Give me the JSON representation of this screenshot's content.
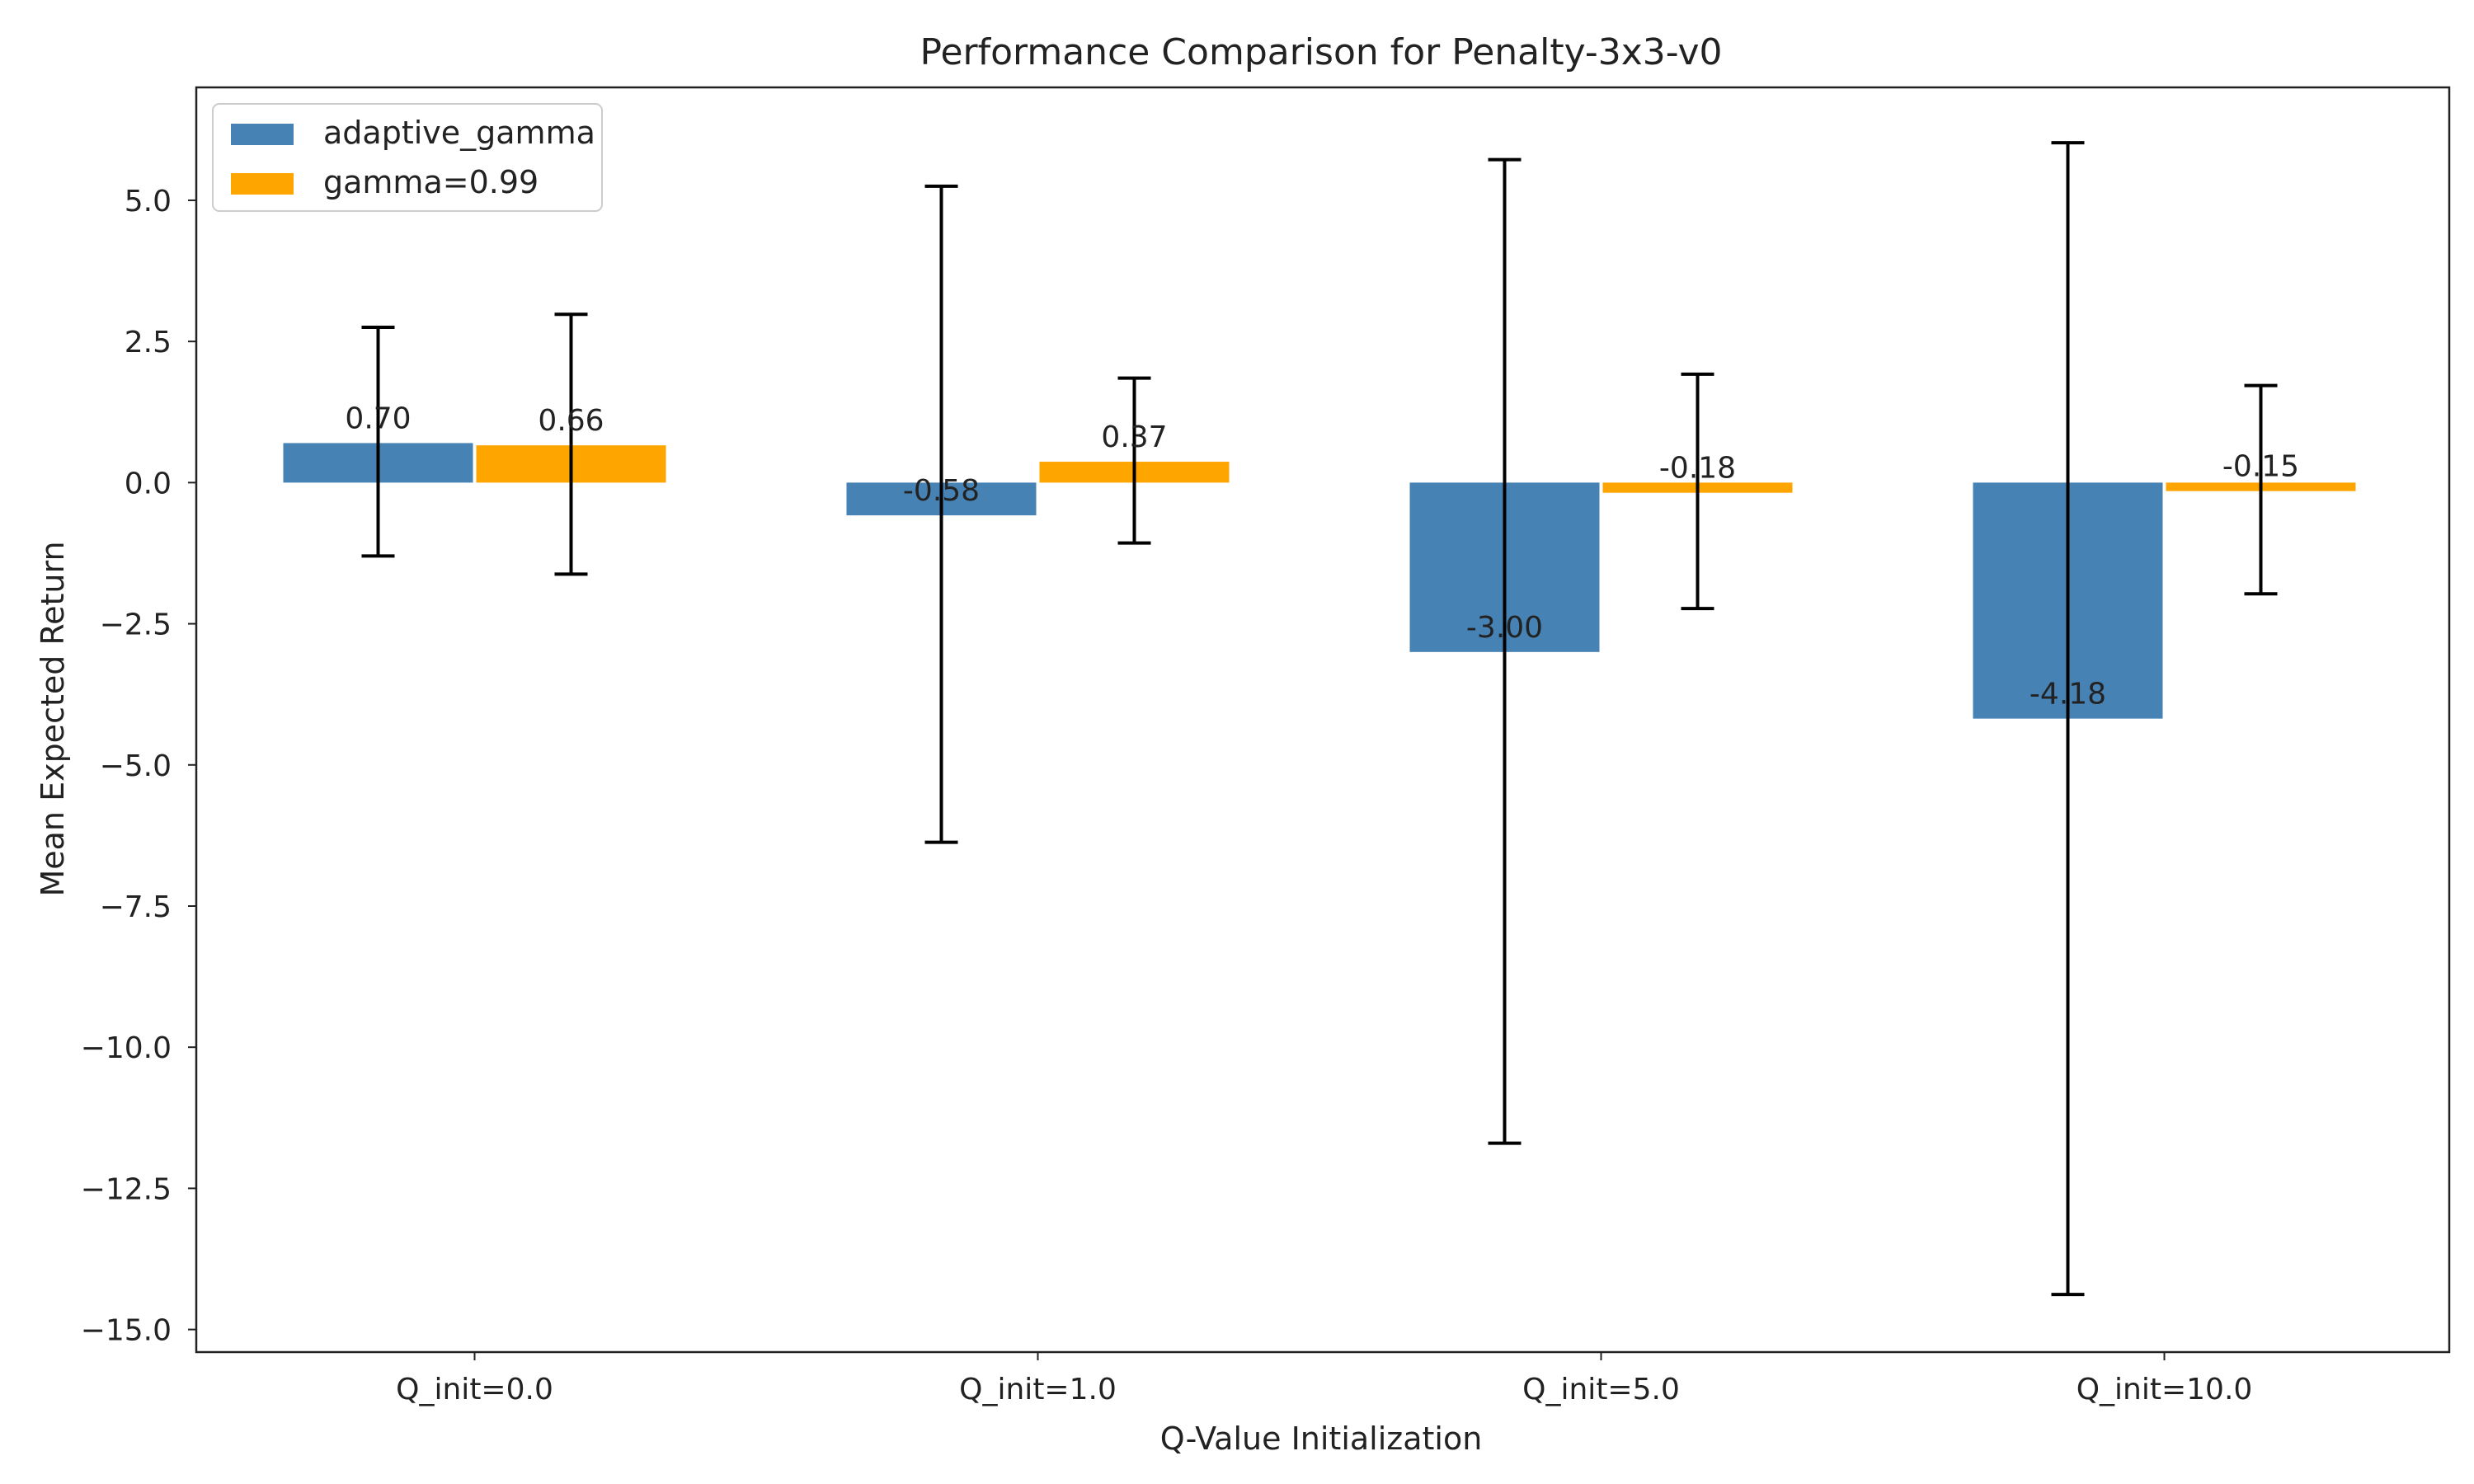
{
  "chart_data": {
    "type": "bar",
    "title": "Performance Comparison for Penalty-3x3-v0",
    "xlabel": "Q-Value Initialization",
    "ylabel": "Mean Expected Return",
    "categories": [
      "Q_init=0.0",
      "Q_init=1.0",
      "Q_init=5.0",
      "Q_init=10.0"
    ],
    "series": [
      {
        "name": "adaptive_gamma",
        "color": "#4682b4",
        "values": [
          0.7,
          -0.58,
          -3.0,
          -4.18
        ],
        "labels": [
          "0.70",
          "-0.58",
          "-3.00",
          "-4.18"
        ],
        "err_low": [
          -1.3,
          -6.37,
          -11.7,
          -14.38
        ],
        "err_high": [
          2.75,
          5.25,
          5.72,
          6.02
        ]
      },
      {
        "name": "gamma=0.99",
        "color": "#ffa500",
        "values": [
          0.66,
          0.37,
          -0.18,
          -0.15
        ],
        "labels": [
          "0.66",
          "0.37",
          "-0.18",
          "-0.15"
        ],
        "err_low": [
          -1.62,
          -1.07,
          -2.23,
          -1.97
        ],
        "err_high": [
          2.98,
          1.85,
          1.92,
          1.72
        ]
      }
    ],
    "yticks": [
      5.0,
      2.5,
      0.0,
      -2.5,
      -5.0,
      -7.5,
      -10.0,
      -12.5,
      -15.0
    ],
    "ytick_labels": [
      "5.0",
      "2.5",
      "0.0",
      "−2.5",
      "−5.0",
      "−7.5",
      "−10.0",
      "−12.5",
      "−15.0"
    ],
    "ylim": [
      -15.4,
      7.0
    ],
    "grid": false,
    "legend": "top-left"
  }
}
